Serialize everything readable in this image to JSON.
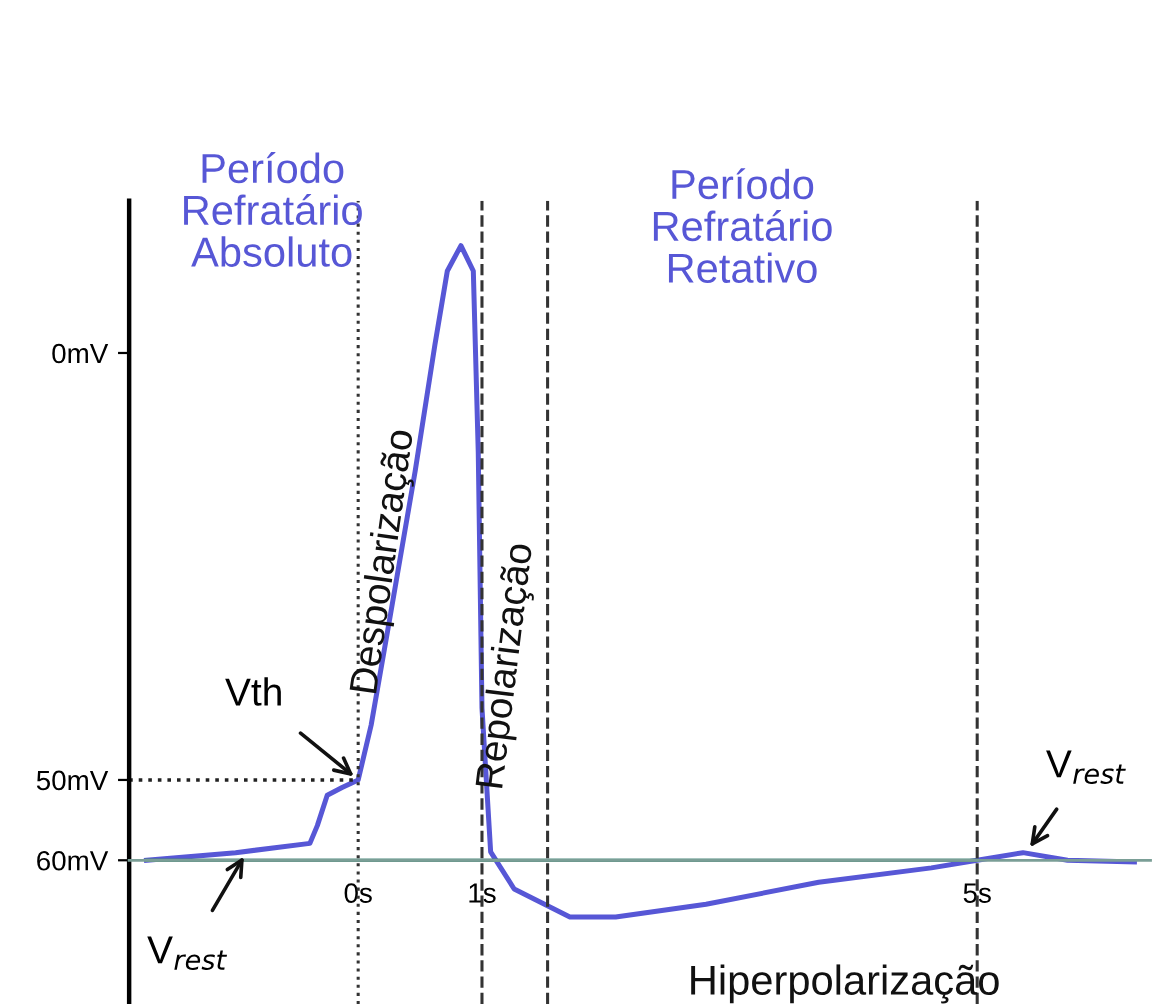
{
  "chart_data": {
    "type": "line",
    "x": [
      -1.71,
      -0.99,
      -0.39,
      -0.33,
      -0.25,
      -0.13,
      0,
      0.105,
      0.26,
      0.46,
      0.62,
      0.72,
      0.83,
      0.93,
      0.97,
      1,
      1.07,
      1.26,
      1.71,
      2.08,
      2.81,
      3.72,
      4.63,
      5,
      5.37,
      5.73,
      6.27
    ],
    "series": [
      {
        "color": "#5757d6",
        "values": [
          -60,
          -59.1,
          -58,
          -55.9,
          -52.3,
          -51.4,
          -50.5,
          -44,
          -31,
          -14,
          1,
          9.7,
          12.7,
          9.7,
          -11.8,
          -42,
          -59,
          -63.4,
          -66.7,
          -66.7,
          -65.2,
          -62.6,
          -60.9,
          -60,
          -59.1,
          -60,
          -60.2
        ]
      },
      {
        "color": "#4f8a7e",
        "x": [
          -1.71,
          5
        ],
        "values": [
          -60,
          -60
        ]
      },
      {
        "color": "#222222",
        "x": [
          -1.85,
          0
        ],
        "values": [
          -50.5,
          -50.5
        ],
        "line_style": "dotted"
      }
    ],
    "xlim": [
      -1.85,
      6.4
    ],
    "xticks": [
      {
        "value": 0,
        "label": "0s"
      },
      {
        "value": 1,
        "label": "1s"
      },
      {
        "value": 5,
        "label": "5s"
      }
    ],
    "ylim": [
      -77,
      18
    ],
    "yticks": [
      {
        "value": -60,
        "label": "60mV"
      },
      {
        "value": -50.5,
        "label": "50mV"
      },
      {
        "value": 0,
        "label": "0mV"
      }
    ],
    "ref_lines": [
      {
        "axis": "x",
        "value": 0,
        "line_style": "dotted",
        "color": "#333333"
      },
      {
        "axis": "x",
        "value": 1,
        "line_style": "dashed",
        "color": "#333333"
      },
      {
        "axis": "x",
        "value": 1.53,
        "line_style": "dashed",
        "color": "#333333"
      },
      {
        "axis": "x",
        "value": 5,
        "line_style": "dashed",
        "color": "#333333"
      }
    ],
    "annotations": [
      "Período\nRefratário\nAbsoluto",
      "Período\nRefratário\nRetativo",
      "Despolarização",
      "Repolarização",
      "Hiperpolarização",
      {
        "text": "Vth",
        "x": 0,
        "y": -50.5
      },
      {
        "text": "V$_{rest}$",
        "x": -0.9,
        "y": -59
      },
      {
        "text": "V$_{rest}$",
        "x": 5.4,
        "y": -59
      }
    ],
    "grid": false,
    "marker": "none"
  }
}
